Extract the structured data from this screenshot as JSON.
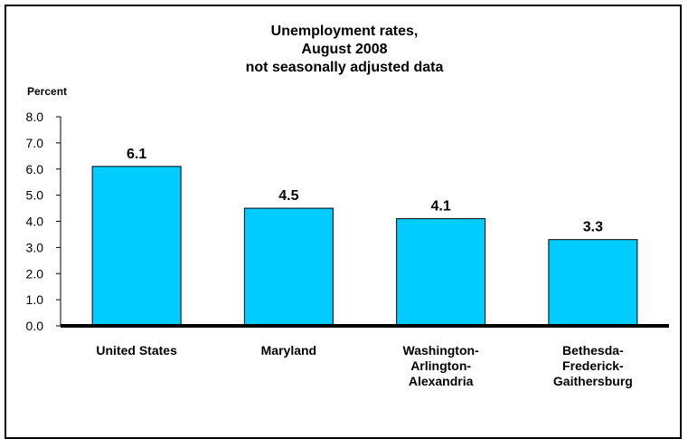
{
  "chart_data": {
    "type": "bar",
    "title_lines": [
      "Unemployment rates,",
      "August 2008",
      "not seasonally adjusted data"
    ],
    "ylabel": "Percent",
    "xlabel": "",
    "ylim": [
      0,
      8
    ],
    "yticks": [
      "0.0",
      "1.0",
      "2.0",
      "3.0",
      "4.0",
      "5.0",
      "6.0",
      "7.0",
      "8.0"
    ],
    "categories": [
      [
        "United States"
      ],
      [
        "Maryland"
      ],
      [
        "Washington-",
        "Arlington-",
        "Alexandria"
      ],
      [
        "Bethesda-",
        "Frederick-",
        "Gaithersburg"
      ]
    ],
    "values": [
      6.1,
      4.5,
      4.1,
      3.3
    ],
    "data_labels": [
      "6.1",
      "4.5",
      "4.1",
      "3.3"
    ],
    "bar_color": "#00CCFF",
    "bar_edge_color": "#000000",
    "grid": false,
    "legend": "none"
  }
}
